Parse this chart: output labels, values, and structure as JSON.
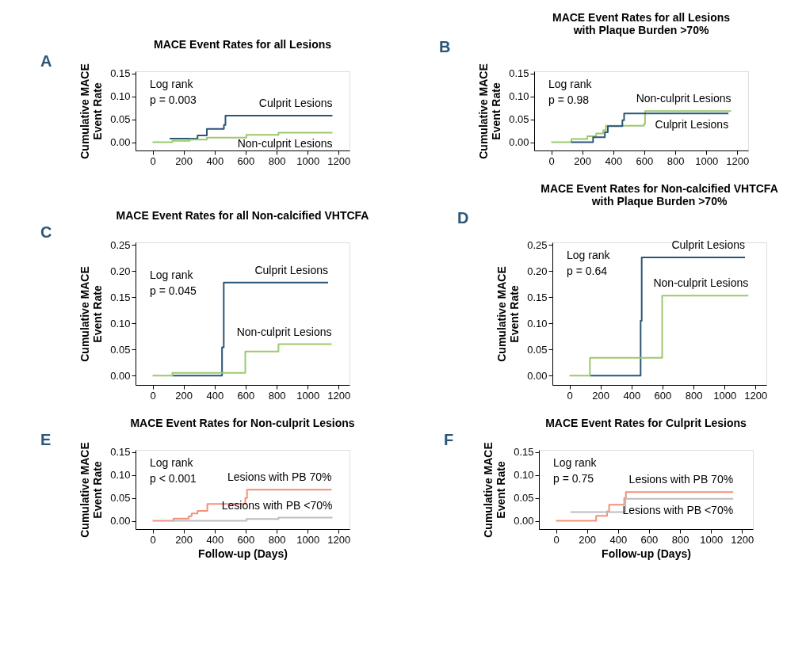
{
  "chart_data": [
    {
      "type": "step",
      "title": "MACE Event Rates for all Lesions",
      "ylabel": "Cumulative MACE\nEvent Rate",
      "annotations": [
        "A",
        "Log rank",
        "p = 0.003"
      ],
      "xlim": [
        -110,
        1270
      ],
      "xticks": [
        0,
        200,
        400,
        600,
        800,
        1000,
        1200
      ],
      "ylim": [
        -0.018,
        0.155
      ],
      "yticks": [
        {
          "value": 0,
          "label": "0.00"
        },
        0.05,
        {
          "value": 0.1,
          "label": "0.10"
        },
        0.15
      ],
      "grid": false,
      "series": [
        {
          "name": "Culprit Lesions",
          "color": "#2b5677",
          "x": [
            110,
            290,
            350,
            460,
            470,
            1160
          ],
          "values": [
            0.008,
            0.015,
            0.029,
            0.038,
            0.058,
            0.058
          ]
        },
        {
          "name": "Non-culprit Lesions",
          "color": "#9cc96b",
          "x": [
            0,
            128,
            240,
            350,
            605,
            812,
            1160
          ],
          "values": [
            0,
            0.003,
            0.006,
            0.01,
            0.016,
            0.021,
            0.021
          ]
        }
      ]
    },
    {
      "type": "step",
      "title": "MACE Event Rates for all Lesions\nwith Plaque Burden >70%",
      "ylabel": "Cumulative MACE\nEvent Rate",
      "annotations": [
        "B",
        "Log rank",
        "p = 0.98"
      ],
      "xlim": [
        -110,
        1270
      ],
      "xticks": [
        0,
        200,
        400,
        600,
        800,
        1000,
        1200
      ],
      "ylim": [
        -0.018,
        0.155
      ],
      "yticks": [
        {
          "value": 0,
          "label": "0.00"
        },
        0.05,
        {
          "value": 0.1,
          "label": "0.10"
        },
        0.15
      ],
      "grid": false,
      "series": [
        {
          "name": "Non-culprit Lesions",
          "color": "#9cc96b",
          "x": [
            0,
            130,
            233,
            290,
            335,
            353,
            598,
            605,
            1160
          ],
          "values": [
            0,
            0.007,
            0.013,
            0.019,
            0.026,
            0.036,
            0.04,
            0.068,
            0.068
          ]
        },
        {
          "name": "Culprit Lesions",
          "color": "#2b5677",
          "x": [
            128,
            270,
            346,
            365,
            459,
            470,
            1143
          ],
          "values": [
            0,
            0.011,
            0.022,
            0.035,
            0.048,
            0.063,
            0.063
          ]
        }
      ]
    },
    {
      "type": "step",
      "title": "MACE Event Rates for all Non-calcified VHTCFA",
      "ylabel": "Cumulative MACE\nEvent Rate",
      "annotations": [
        "C",
        "Log rank",
        "p = 0.045"
      ],
      "xlim": [
        -110,
        1270
      ],
      "xticks": [
        0,
        200,
        400,
        600,
        800,
        1000,
        1200
      ],
      "ylim": [
        -0.018,
        0.255
      ],
      "yticks": [
        {
          "value": 0,
          "label": "0.00"
        },
        0.05,
        {
          "value": 0.1,
          "label": "0.10"
        },
        0.15,
        {
          "value": 0.2,
          "label": "0.20"
        },
        0.25
      ],
      "grid": false,
      "series": [
        {
          "name": "Culprit Lesions",
          "color": "#2b5677",
          "x": [
            128,
            448,
            459,
            1132
          ],
          "values": [
            0,
            0.054,
            0.178,
            0.178
          ]
        },
        {
          "name": "Non-culprit Lesions",
          "color": "#9cc96b",
          "x": [
            0,
            128,
            598,
            812,
            1155
          ],
          "values": [
            0,
            0.005,
            0.046,
            0.06,
            0.06
          ]
        }
      ]
    },
    {
      "type": "step",
      "title": "MACE Event Rates for Non-calcified VHTCFA\nwith Plaque Burden >70%",
      "ylabel": "Cumulative MACE\nEvent Rate",
      "annotations": [
        "D",
        "Log rank",
        "p = 0.64"
      ],
      "xlim": [
        -110,
        1270
      ],
      "xticks": [
        0,
        200,
        400,
        600,
        800,
        1000,
        1200
      ],
      "ylim": [
        -0.018,
        0.255
      ],
      "yticks": [
        {
          "value": 0,
          "label": "0.00"
        },
        0.05,
        {
          "value": 0.1,
          "label": "0.10"
        },
        0.15,
        {
          "value": 0.2,
          "label": "0.20"
        },
        0.25
      ],
      "grid": false,
      "series": [
        {
          "name": "Culprit Lesions",
          "color": "#2b5677",
          "x": [
            132,
            459,
            466,
            1132
          ],
          "values": [
            0,
            0.105,
            0.226,
            0.226
          ]
        },
        {
          "name": "Non-culprit Lesions",
          "color": "#9cc96b",
          "x": [
            0,
            132,
            598,
            1154
          ],
          "values": [
            0,
            0.034,
            0.153,
            0.153
          ]
        }
      ]
    },
    {
      "type": "step",
      "title": "MACE Event Rates for Non-culprit Lesions",
      "xlabel": "Follow-up (Days)",
      "ylabel": "Cumulative MACE\nEvent Rate",
      "annotations": [
        "E",
        "Log rank",
        "p < 0.001"
      ],
      "xlim": [
        -110,
        1270
      ],
      "xticks": [
        0,
        200,
        400,
        600,
        800,
        1000,
        1200
      ],
      "ylim": [
        -0.018,
        0.155
      ],
      "yticks": [
        {
          "value": 0,
          "label": "0.00"
        },
        0.05,
        {
          "value": 0.1,
          "label": "0.10"
        },
        0.15
      ],
      "grid": false,
      "series": [
        {
          "name": "Lesions with PB  70%",
          "color": "#f4907a",
          "x": [
            0,
            135,
            233,
            252,
            290,
            353,
            598,
            609,
            1155
          ],
          "values": [
            0,
            0.005,
            0.01,
            0.016,
            0.022,
            0.037,
            0.05,
            0.068,
            0.068
          ]
        },
        {
          "name": "Lesions with PB <70%",
          "color": "#bdbdbd",
          "x": [
            120,
            605,
            812,
            1160
          ],
          "values": [
            0,
            0.004,
            0.007,
            0.007
          ]
        }
      ]
    },
    {
      "type": "step",
      "title": "MACE Event Rates for Culprit Lesions",
      "xlabel": "Follow-up (Days)",
      "ylabel": "Cumulative MACE\nEvent Rate",
      "annotations": [
        "F",
        "Log rank",
        "p = 0.75"
      ],
      "xlim": [
        -110,
        1270
      ],
      "xticks": [
        0,
        200,
        400,
        600,
        800,
        1000,
        1200
      ],
      "ylim": [
        -0.018,
        0.155
      ],
      "yticks": [
        {
          "value": 0,
          "label": "0.00"
        },
        0.05,
        {
          "value": 0.1,
          "label": "0.10"
        },
        0.15
      ],
      "grid": false,
      "series": [
        {
          "name": "Lesions with PB  70%",
          "color": "#f4907a",
          "x": [
            0,
            259,
            330,
            343,
            440,
            451,
            1143
          ],
          "values": [
            0,
            0.011,
            0.021,
            0.035,
            0.05,
            0.063,
            0.063
          ]
        },
        {
          "name": "Lesions with PB <70%",
          "color": "#bdbdbd",
          "x": [
            94,
            448,
            1143
          ],
          "values": [
            0.019,
            0.048,
            0.048
          ]
        }
      ]
    }
  ]
}
